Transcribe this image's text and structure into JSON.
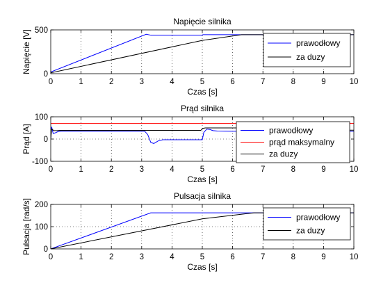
{
  "chart_data": [
    {
      "type": "line",
      "title": "Napięcie silnika",
      "xlabel": "Czas [s]",
      "ylabel": "Napięcie [V]",
      "xlim": [
        0,
        10
      ],
      "ylim": [
        0,
        500
      ],
      "xticks": [
        "0",
        "1",
        "2",
        "3",
        "4",
        "5",
        "6",
        "7",
        "8",
        "9",
        "10"
      ],
      "yticks": [
        "0",
        "500"
      ],
      "ytick_values": [
        0,
        500
      ],
      "grid": true,
      "legend_placement": "right",
      "series": [
        {
          "name": "prawodłowy",
          "color": "#0000ff",
          "x": [
            0,
            3.15,
            3.3,
            3.32,
            5,
            5.02,
            10
          ],
          "y": [
            20,
            450,
            440,
            440,
            440,
            445,
            445
          ]
        },
        {
          "name": "za duzy",
          "color": "#000000",
          "x": [
            0,
            5,
            6.3,
            10
          ],
          "y": [
            10,
            380,
            445,
            445
          ]
        }
      ]
    },
    {
      "type": "line",
      "title": "Prąd silnika",
      "xlabel": "Czas [s]",
      "ylabel": "Prąd [A]",
      "xlim": [
        0,
        10
      ],
      "ylim": [
        -100,
        100
      ],
      "xticks": [
        "0",
        "1",
        "2",
        "3",
        "4",
        "5",
        "6",
        "7",
        "8",
        "9",
        "10"
      ],
      "yticks": [
        "-100",
        "0",
        "100"
      ],
      "ytick_values": [
        -100,
        0,
        100
      ],
      "grid": true,
      "legend_placement": "right",
      "series": [
        {
          "name": "prawodłowy",
          "color": "#0000ff",
          "x": [
            0,
            0.03,
            0.08,
            0.15,
            0.25,
            0.35,
            3.1,
            3.2,
            3.3,
            3.4,
            3.55,
            3.7,
            5.0,
            5.05,
            5.15,
            5.25,
            5.35,
            5.5,
            6.0,
            10
          ],
          "y": [
            0,
            55,
            25,
            28,
            34,
            35,
            35,
            20,
            -15,
            -20,
            -8,
            -3,
            -3,
            30,
            45,
            43,
            38,
            36,
            35,
            35
          ]
        },
        {
          "name": "prąd maksymalny",
          "color": "#ff0000",
          "x": [
            0,
            10
          ],
          "y": [
            70,
            70
          ]
        },
        {
          "name": "za duzy",
          "color": "#000000",
          "x": [
            0,
            0.03,
            0.1,
            0.2,
            0.3,
            4.95,
            5.02,
            5.1,
            5.2,
            6.3,
            6.4,
            6.6,
            10
          ],
          "y": [
            0,
            45,
            38,
            38,
            39,
            39,
            48,
            50,
            50,
            50,
            45,
            40,
            40
          ]
        }
      ]
    },
    {
      "type": "line",
      "title": "Pulsacja silnika",
      "xlabel": "Czas [s]",
      "ylabel": "Pulsacja [rad/s]",
      "xlim": [
        0,
        10
      ],
      "ylim": [
        0,
        200
      ],
      "xticks": [
        "0",
        "1",
        "2",
        "3",
        "4",
        "5",
        "6",
        "7",
        "8",
        "9",
        "10"
      ],
      "yticks": [
        "0",
        "100",
        "200"
      ],
      "ytick_values": [
        0,
        100,
        200
      ],
      "grid": true,
      "legend_placement": "right",
      "series": [
        {
          "name": "prawodłowy",
          "color": "#0000ff",
          "x": [
            0,
            3.3,
            3.4,
            5,
            10
          ],
          "y": [
            0,
            162,
            162,
            162,
            162
          ]
        },
        {
          "name": "za duzy",
          "color": "#000000",
          "x": [
            0,
            5,
            6.7,
            10
          ],
          "y": [
            0,
            135,
            162,
            162
          ]
        }
      ]
    }
  ]
}
